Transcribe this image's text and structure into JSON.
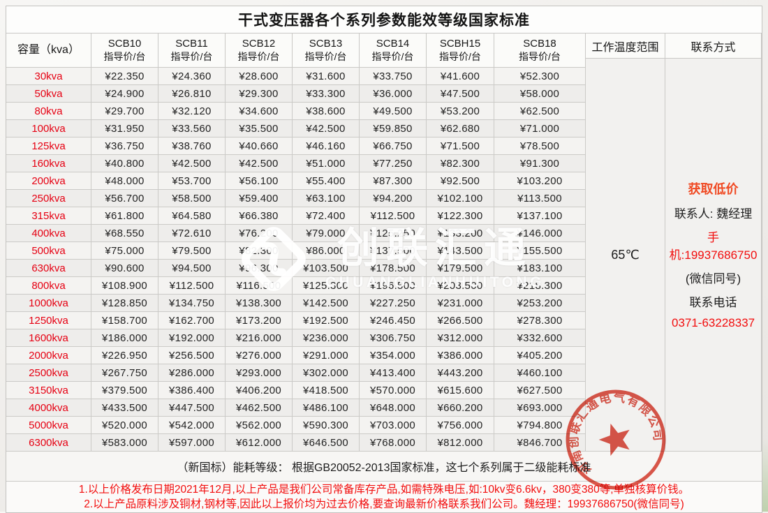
{
  "title": "干式变压器各个系列参数能效等级国家标准",
  "table": {
    "capacity_header": "容量（kva）",
    "series_headers": [
      {
        "name": "SCB10",
        "sub": "指导价/台"
      },
      {
        "name": "SCB11",
        "sub": "指导价/台"
      },
      {
        "name": "SCB12",
        "sub": "指导价/台"
      },
      {
        "name": "SCB13",
        "sub": "指导价/台"
      },
      {
        "name": "SCB14",
        "sub": "指导价/台"
      },
      {
        "name": "SCBH15",
        "sub": "指导价/台"
      },
      {
        "name": "SCB18",
        "sub": "指导价/台"
      }
    ],
    "temp_header": "工作温度范围",
    "contact_header": "联系方式",
    "temp_value": "65℃",
    "rows": [
      {
        "capacity": "30kva",
        "prices": [
          "¥22.350",
          "¥24.360",
          "¥28.600",
          "¥31.600",
          "¥33.750",
          "¥41.600",
          "¥52.300"
        ]
      },
      {
        "capacity": "50kva",
        "prices": [
          "¥24.900",
          "¥26.810",
          "¥29.300",
          "¥33.300",
          "¥36.000",
          "¥47.500",
          "¥58.000"
        ]
      },
      {
        "capacity": "80kva",
        "prices": [
          "¥29.700",
          "¥32.120",
          "¥34.600",
          "¥38.600",
          "¥49.500",
          "¥53.200",
          "¥62.500"
        ]
      },
      {
        "capacity": "100kva",
        "prices": [
          "¥31.950",
          "¥33.560",
          "¥35.500",
          "¥42.500",
          "¥59.850",
          "¥62.680",
          "¥71.000"
        ]
      },
      {
        "capacity": "125kva",
        "prices": [
          "¥36.750",
          "¥38.760",
          "¥40.660",
          "¥46.160",
          "¥66.750",
          "¥71.500",
          "¥78.500"
        ]
      },
      {
        "capacity": "160kva",
        "prices": [
          "¥40.800",
          "¥42.500",
          "¥42.500",
          "¥51.000",
          "¥77.250",
          "¥82.300",
          "¥91.300"
        ]
      },
      {
        "capacity": "200kva",
        "prices": [
          "¥48.000",
          "¥53.700",
          "¥56.100",
          "¥55.400",
          "¥87.300",
          "¥92.500",
          "¥103.200"
        ]
      },
      {
        "capacity": "250kva",
        "prices": [
          "¥56.700",
          "¥58.500",
          "¥59.400",
          "¥63.100",
          "¥94.200",
          "¥102.100",
          "¥113.500"
        ]
      },
      {
        "capacity": "315kva",
        "prices": [
          "¥61.800",
          "¥64.580",
          "¥66.380",
          "¥72.400",
          "¥112.500",
          "¥122.300",
          "¥137.100"
        ]
      },
      {
        "capacity": "400kva",
        "prices": [
          "¥68.550",
          "¥72.610",
          "¥76.200",
          "¥79.000",
          "¥125.250",
          "¥133.200",
          "¥146.000"
        ]
      },
      {
        "capacity": "500kva",
        "prices": [
          "¥75.000",
          "¥79.500",
          "¥82.300",
          "¥86.000",
          "¥137.500",
          "¥143.500",
          "¥155.500"
        ]
      },
      {
        "capacity": "630kva",
        "prices": [
          "¥90.600",
          "¥94.500",
          "¥96.300",
          "¥103.500",
          "¥178.500",
          "¥179.500",
          "¥183.100"
        ]
      },
      {
        "capacity": "800kva",
        "prices": [
          "¥108.900",
          "¥112.500",
          "¥116.500",
          "¥125.300",
          "¥196.500",
          "¥203.500",
          "¥218.300"
        ]
      },
      {
        "capacity": "1000kva",
        "prices": [
          "¥128.850",
          "¥134.750",
          "¥138.300",
          "¥142.500",
          "¥227.250",
          "¥231.000",
          "¥253.200"
        ]
      },
      {
        "capacity": "1250kva",
        "prices": [
          "¥158.700",
          "¥162.700",
          "¥173.200",
          "¥192.500",
          "¥246.450",
          "¥266.500",
          "¥278.300"
        ]
      },
      {
        "capacity": "1600kva",
        "prices": [
          "¥186.000",
          "¥192.000",
          "¥216.000",
          "¥236.000",
          "¥306.750",
          "¥312.000",
          "¥332.600"
        ]
      },
      {
        "capacity": "2000kva",
        "prices": [
          "¥226.950",
          "¥256.500",
          "¥276.000",
          "¥291.000",
          "¥354.000",
          "¥386.000",
          "¥405.200"
        ]
      },
      {
        "capacity": "2500kva",
        "prices": [
          "¥267.750",
          "¥286.000",
          "¥293.000",
          "¥302.000",
          "¥413.400",
          "¥443.200",
          "¥460.100"
        ]
      },
      {
        "capacity": "3150kva",
        "prices": [
          "¥379.500",
          "¥386.400",
          "¥406.200",
          "¥418.500",
          "¥570.000",
          "¥615.600",
          "¥627.500"
        ]
      },
      {
        "capacity": "4000kva",
        "prices": [
          "¥433.500",
          "¥447.500",
          "¥462.500",
          "¥486.100",
          "¥648.000",
          "¥660.200",
          "¥693.000"
        ]
      },
      {
        "capacity": "5000kva",
        "prices": [
          "¥520.000",
          "¥542.000",
          "¥562.000",
          "¥590.300",
          "¥703.000",
          "¥756.000",
          "¥794.800"
        ]
      },
      {
        "capacity": "6300kva",
        "prices": [
          "¥583.000",
          "¥597.000",
          "¥612.000",
          "¥646.500",
          "¥768.000",
          "¥812.000",
          "¥846.700"
        ]
      }
    ]
  },
  "contact": {
    "promo": "获取低价",
    "person": "联系人: 魏经理",
    "mobile": "手机:19937686750",
    "wechat_note": "(微信同号)",
    "phone_label": "联系电话",
    "phone": "0371-63228337"
  },
  "notes": {
    "standard": "（新国标）能耗等级： 根据GB20052-2013国家标准，这七个系列属于二级能耗标准",
    "red1": "1.以上价格发布日期2021年12月,以上产品是我们公司常备库存产品,如需特殊电压,如:10kv变6.6kv，380变380等,单独核算价钱。",
    "red2": "2.以上产品原料涉及铜材,钢材等,因此以上报价均为过去价格,要查询最新价格联系我们公司。魏经理：19937686750(微信同号)"
  },
  "watermark": {
    "logo": "创联汇通",
    "subtext": "CHUANGLIANHUITONG"
  },
  "stamp": {
    "company": "河南创联汇通电气有限公司"
  },
  "colors": {
    "label_red": "#e60012",
    "note_red": "#f20d0d",
    "promo_orange": "#f04a23",
    "stamp_red": "#d93a2b"
  }
}
